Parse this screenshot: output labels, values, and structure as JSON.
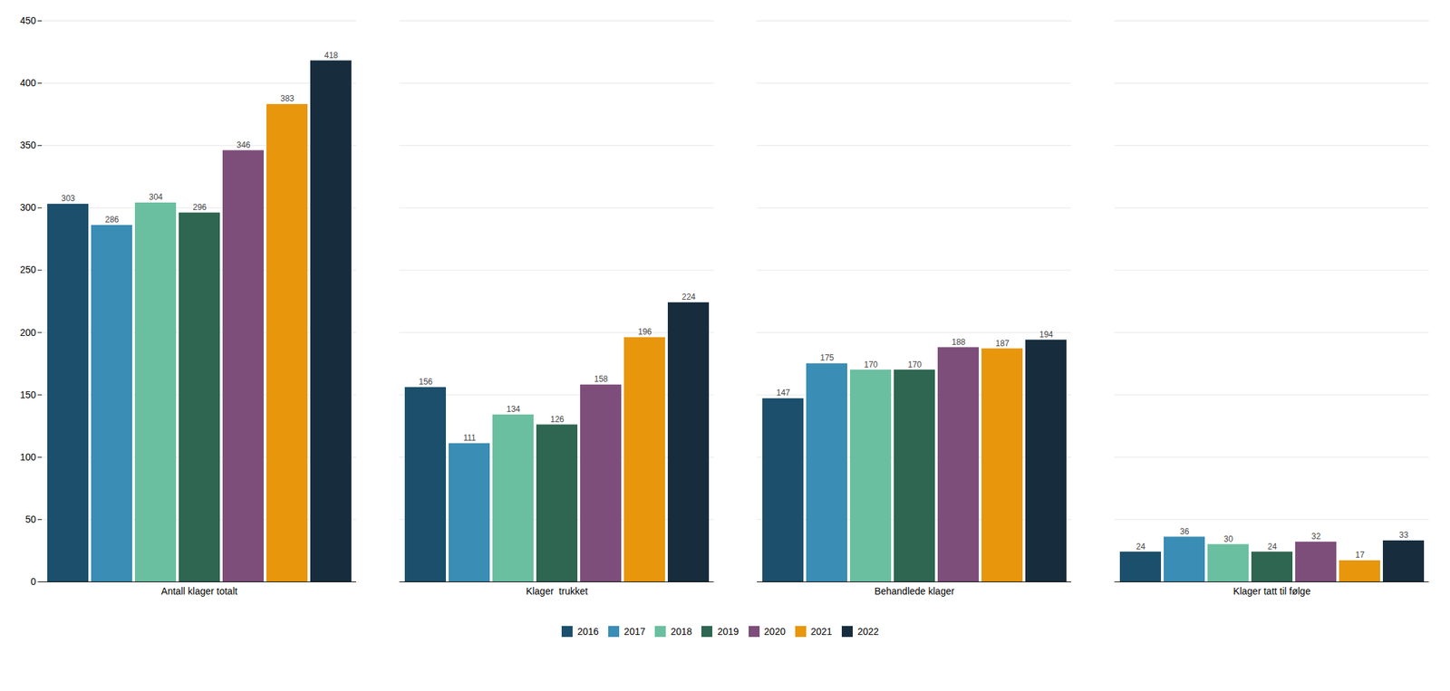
{
  "chart_data": {
    "type": "bar",
    "categories": [
      "Antall klager totalt",
      "Klager  trukket",
      "Behandlede klager",
      "Klager tatt til følge"
    ],
    "series": [
      {
        "name": "2016",
        "color": "#1b4f6b",
        "values": [
          303,
          156,
          147,
          24
        ]
      },
      {
        "name": "2017",
        "color": "#3a8db5",
        "values": [
          286,
          111,
          175,
          36
        ]
      },
      {
        "name": "2018",
        "color": "#6abfa0",
        "values": [
          304,
          134,
          170,
          30
        ]
      },
      {
        "name": "2019",
        "color": "#2e6652",
        "values": [
          296,
          126,
          170,
          24
        ]
      },
      {
        "name": "2020",
        "color": "#7d4e7a",
        "values": [
          346,
          158,
          188,
          32
        ]
      },
      {
        "name": "2021",
        "color": "#e8960c",
        "values": [
          383,
          196,
          187,
          17
        ]
      },
      {
        "name": "2022",
        "color": "#172d3e",
        "values": [
          418,
          224,
          194,
          33
        ]
      }
    ],
    "ylim": [
      0,
      450
    ],
    "yticks": [
      0,
      50,
      100,
      150,
      200,
      250,
      300,
      350,
      400,
      450
    ],
    "grid": true,
    "legend": "bottom",
    "data_labels": true
  }
}
